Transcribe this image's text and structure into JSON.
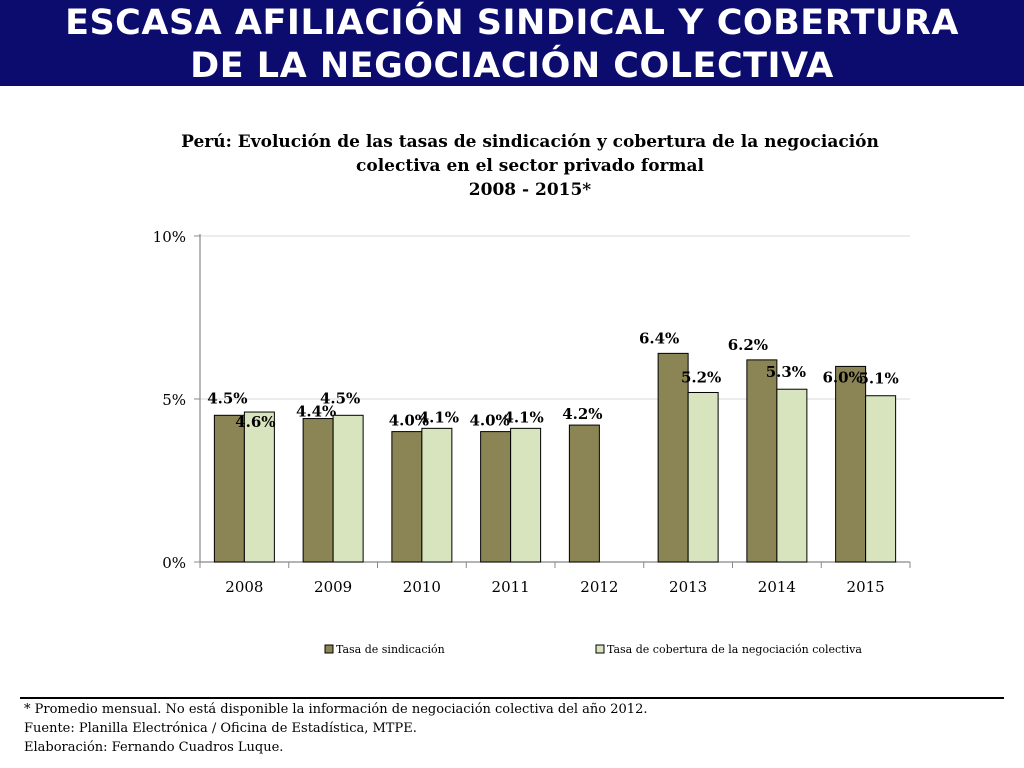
{
  "header": {
    "title_line1": "ESCASA AFILIACIÓN SINDICAL Y COBERTURA",
    "title_line2": "DE LA NEGOCIACIÓN COLECTIVA"
  },
  "chart_data": {
    "type": "bar",
    "title_lines": [
      "Perú: Evolución de las tasas de sindicación y cobertura de la negociación",
      "colectiva en el sector privado formal",
      "2008 - 2015*"
    ],
    "categories": [
      "2008",
      "2009",
      "2010",
      "2011",
      "2012",
      "2013",
      "2014",
      "2015"
    ],
    "series": [
      {
        "name": "Tasa de sindicación",
        "color": "#8b8455",
        "values": [
          4.5,
          4.4,
          4.0,
          4.0,
          4.2,
          6.4,
          6.2,
          6.0
        ],
        "labels": [
          "4.5%",
          "4.4%",
          "4.0%",
          "4.0%",
          "4.2%",
          "6.4%",
          "6.2%",
          "6.0%"
        ]
      },
      {
        "name": "Tasa de cobertura de la negociación colectiva",
        "color": "#d7e4bd",
        "values": [
          4.6,
          4.5,
          4.1,
          4.1,
          null,
          5.2,
          5.3,
          5.1
        ],
        "labels": [
          "4.6%",
          "4.5%",
          "4.1%",
          "4.1%",
          null,
          "5.2%",
          "5.3%",
          "5.1%"
        ]
      }
    ],
    "y_ticks": [
      "0%",
      "5%",
      "10%"
    ],
    "ylim": [
      0,
      10
    ],
    "grid": true,
    "legend_position": "bottom"
  },
  "footer": {
    "note": "* Promedio mensual. No está disponible la información de negociación colectiva del año 2012.",
    "source": "Fuente:  Planilla Electrónica / Oficina de Estadística, MTPE.",
    "author": "Elaboración: Fernando Cuadros Luque."
  }
}
